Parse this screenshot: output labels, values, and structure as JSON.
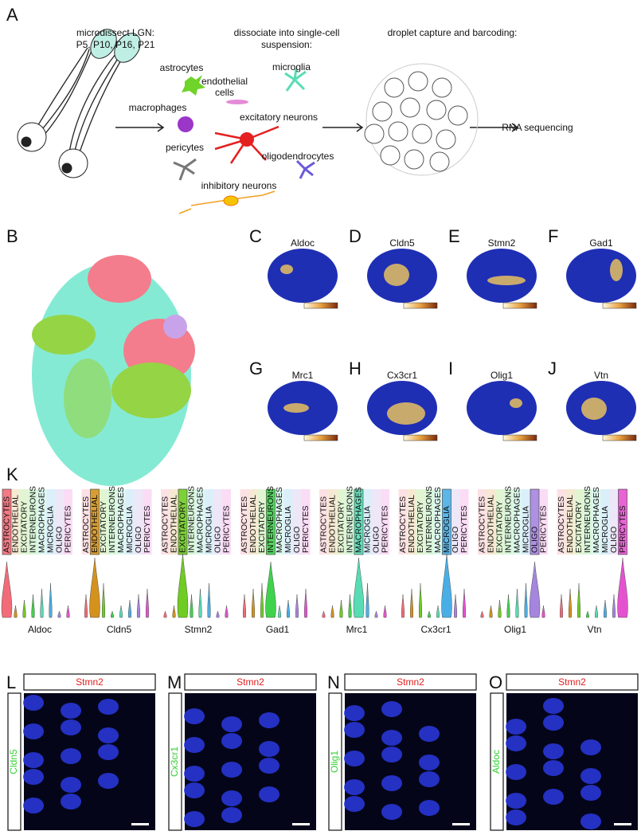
{
  "panel_a": {
    "label": "A",
    "step1": [
      "microdissect LGN:",
      "P5, P10, P16, P21"
    ],
    "step2": [
      "dissociate into single-cell",
      "suspension:"
    ],
    "step3": "droplet capture and barcoding:",
    "cells": [
      "astrocytes",
      "microglia",
      "endothelial",
      "cells",
      "macrophages",
      "excitatory neurons",
      "pericytes",
      "oligodendrocytes",
      "inhibitory neurons"
    ],
    "step4": "RNA sequencing"
  },
  "panel_b": {
    "label": "B"
  },
  "feature_plots": [
    {
      "label": "C",
      "gene": "Aldoc"
    },
    {
      "label": "D",
      "gene": "Cldn5"
    },
    {
      "label": "E",
      "gene": "Stmn2"
    },
    {
      "label": "F",
      "gene": "Gad1"
    },
    {
      "label": "G",
      "gene": "Mrc1"
    },
    {
      "label": "H",
      "gene": "Cx3cr1"
    },
    {
      "label": "I",
      "gene": "Olig1"
    },
    {
      "label": "J",
      "gene": "Vtn"
    }
  ],
  "panel_k": {
    "label": "K",
    "cell_types": [
      "ASTROCYTES",
      "ENDOTHELIAL",
      "EXCITATORY",
      "INTERNEURONS",
      "MACROPHAGES",
      "MICROGLIA",
      "OLIGO",
      "PERICYTES"
    ],
    "colors": [
      "#f26b78",
      "#d4921c",
      "#6fcc22",
      "#3fd24c",
      "#58dcb4",
      "#4aaee6",
      "#a585de",
      "#e552cf"
    ],
    "genes": [
      "Aldoc",
      "Cldn5",
      "Stmn2",
      "Gad1",
      "Mrc1",
      "Cx3cr1",
      "Olig1",
      "Vtn"
    ]
  },
  "ish": [
    {
      "label": "L",
      "probe": "Stmn2",
      "counter": "Cldn5"
    },
    {
      "label": "M",
      "probe": "Stmn2",
      "counter": "Cx3cr1"
    },
    {
      "label": "N",
      "probe": "Stmn2",
      "counter": "Olig1"
    },
    {
      "label": "O",
      "probe": "Stmn2",
      "counter": "Aldoc"
    }
  ]
}
